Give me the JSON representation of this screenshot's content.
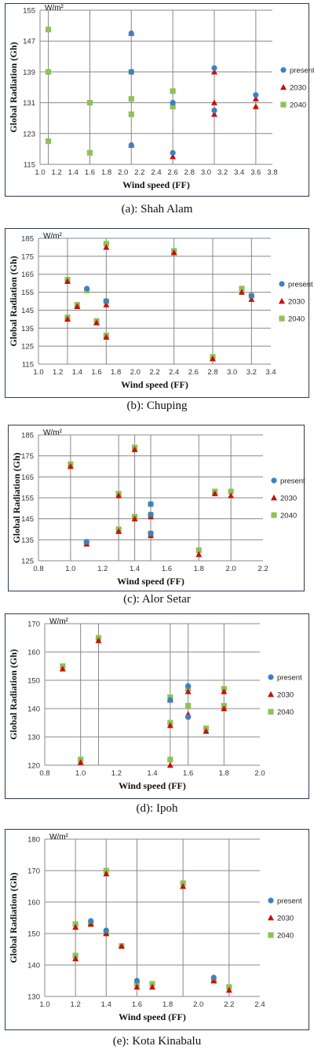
{
  "colors": {
    "present": "#3f7fc4",
    "2030": "#c8100b",
    "2040": "#8fc157"
  },
  "chart_data": [
    {
      "type": "scatter",
      "caption": "(a): Shah Alam",
      "unit": "W/m²",
      "xlabel": "Wind speed (FF)",
      "ylabel": "Global Radiation (Gh)",
      "xticks": [
        "1.0",
        "1.2",
        "1.4",
        "1.6",
        "1.8",
        "2.0",
        "2.2",
        "2.4",
        "2.6",
        "2.8",
        "3.0",
        "3.2",
        "3.4",
        "3.6",
        "3.8"
      ],
      "yticks": [
        "115",
        "123",
        "131",
        "139",
        "147",
        "155"
      ],
      "xlim": [
        1.0,
        3.8
      ],
      "ylim": [
        115,
        155
      ],
      "xgrid": [
        1.1,
        1.6,
        2.1,
        2.6,
        3.1,
        3.6
      ],
      "legend": [
        "present",
        "2030",
        "2040"
      ],
      "legend_position": "right",
      "series": [
        {
          "name": "present",
          "points": [
            [
              2.1,
              149
            ],
            [
              2.1,
              139
            ],
            [
              2.6,
              118
            ],
            [
              2.6,
              131
            ],
            [
              3.1,
              140
            ],
            [
              3.1,
              129
            ],
            [
              3.6,
              133
            ],
            [
              2.1,
              120
            ]
          ]
        },
        {
          "name": "2030",
          "points": [
            [
              2.1,
              149
            ],
            [
              2.1,
              120
            ],
            [
              2.6,
              117
            ],
            [
              3.1,
              131
            ],
            [
              3.1,
              128
            ],
            [
              3.1,
              139
            ],
            [
              3.6,
              130
            ],
            [
              3.6,
              132
            ]
          ]
        },
        {
          "name": "2040",
          "points": [
            [
              1.1,
              150
            ],
            [
              1.1,
              139
            ],
            [
              1.1,
              121
            ],
            [
              1.6,
              131
            ],
            [
              1.6,
              118
            ],
            [
              2.1,
              139
            ],
            [
              2.1,
              132
            ],
            [
              2.1,
              128
            ],
            [
              2.6,
              134
            ],
            [
              2.6,
              130
            ]
          ]
        }
      ]
    },
    {
      "type": "scatter",
      "caption": "(b): Chuping",
      "unit": "W/m²",
      "xlabel": "Wind speed (FF)",
      "ylabel": "Global Radiation (Gh)",
      "xticks": [
        "1.0",
        "1.2",
        "1.4",
        "1.6",
        "1.8",
        "2.0",
        "2.2",
        "2.4",
        "2.6",
        "2.8",
        "3.0",
        "3.2",
        "3.4"
      ],
      "yticks": [
        "115",
        "125",
        "135",
        "145",
        "155",
        "165",
        "175",
        "185"
      ],
      "xlim": [
        1.0,
        3.4
      ],
      "ylim": [
        115,
        185
      ],
      "xgrid": [
        1.3,
        1.7,
        2.4,
        2.8,
        3.2
      ],
      "legend": [
        "present",
        "2030",
        "2040"
      ],
      "legend_position": "right",
      "series": [
        {
          "name": "present",
          "points": [
            [
              1.5,
              157
            ],
            [
              1.7,
              150
            ],
            [
              3.2,
              153
            ]
          ]
        },
        {
          "name": "2030",
          "points": [
            [
              1.3,
              161
            ],
            [
              1.3,
              140
            ],
            [
              1.4,
              147
            ],
            [
              1.6,
              138
            ],
            [
              1.7,
              180
            ],
            [
              1.7,
              148
            ],
            [
              1.7,
              130
            ],
            [
              2.4,
              177
            ],
            [
              2.8,
              118
            ],
            [
              3.1,
              155
            ],
            [
              3.2,
              151
            ]
          ]
        },
        {
          "name": "2040",
          "points": [
            [
              1.3,
              162
            ],
            [
              1.3,
              141
            ],
            [
              1.4,
              148
            ],
            [
              1.5,
              156
            ],
            [
              1.6,
              139
            ],
            [
              1.7,
              182
            ],
            [
              1.7,
              150
            ],
            [
              1.7,
              131
            ],
            [
              2.4,
              178
            ],
            [
              2.8,
              119
            ],
            [
              3.1,
              157
            ],
            [
              3.2,
              153
            ]
          ]
        }
      ]
    },
    {
      "type": "scatter",
      "caption": "(c): Alor Setar",
      "unit": "W/m²",
      "xlabel": "Wind speed (FF)",
      "ylabel": "Global Radiation (Gh)",
      "xticks": [
        "0.8",
        "1.0",
        "1.2",
        "1.4",
        "1.6",
        "1.8",
        "2.0",
        "2.2"
      ],
      "yticks": [
        "125",
        "135",
        "145",
        "155",
        "165",
        "175",
        "185"
      ],
      "xlim": [
        0.8,
        2.2
      ],
      "ylim": [
        125,
        185
      ],
      "xgrid": [
        1.0,
        1.3,
        1.4,
        1.5,
        1.8,
        2.0
      ],
      "legend": [
        "present",
        "2030",
        "2040"
      ],
      "legend_position": "right",
      "series": [
        {
          "name": "present",
          "points": [
            [
              1.1,
              134
            ],
            [
              1.5,
              152
            ],
            [
              1.5,
              147
            ],
            [
              1.5,
              138
            ]
          ]
        },
        {
          "name": "2030",
          "points": [
            [
              1.0,
              170
            ],
            [
              1.1,
              133
            ],
            [
              1.3,
              156
            ],
            [
              1.3,
              139
            ],
            [
              1.4,
              178
            ],
            [
              1.4,
              145
            ],
            [
              1.5,
              146
            ],
            [
              1.5,
              137
            ],
            [
              1.8,
              128
            ],
            [
              1.9,
              157
            ],
            [
              2.0,
              156
            ]
          ]
        },
        {
          "name": "2040",
          "points": [
            [
              1.0,
              171
            ],
            [
              1.1,
              134
            ],
            [
              1.3,
              157
            ],
            [
              1.3,
              140
            ],
            [
              1.4,
              179
            ],
            [
              1.4,
              146
            ],
            [
              1.5,
              152
            ],
            [
              1.5,
              147
            ],
            [
              1.5,
              138
            ],
            [
              1.8,
              130
            ],
            [
              1.9,
              158
            ],
            [
              2.0,
              158
            ]
          ]
        }
      ]
    },
    {
      "type": "scatter",
      "caption": "(d): Ipoh",
      "unit": "W/m²",
      "xlabel": "Wind speed (FF)",
      "ylabel": "Global Radiation (Gh)",
      "xticks": [
        "0.8",
        "1.0",
        "1.2",
        "1.4",
        "1.6",
        "1.8",
        "2.0"
      ],
      "yticks": [
        "120",
        "130",
        "140",
        "150",
        "160",
        "170"
      ],
      "xlim": [
        0.8,
        2.0
      ],
      "ylim": [
        120,
        170
      ],
      "xgrid": [
        1.0,
        1.1,
        1.5,
        1.6,
        1.8
      ],
      "legend": [
        "present",
        "2030",
        "2040"
      ],
      "legend_position": "right",
      "series": [
        {
          "name": "present",
          "points": [
            [
              1.6,
              148
            ],
            [
              1.6,
              137
            ],
            [
              1.5,
              143
            ]
          ]
        },
        {
          "name": "2030",
          "points": [
            [
              0.9,
              154
            ],
            [
              1.0,
              121
            ],
            [
              1.1,
              164
            ],
            [
              1.5,
              143
            ],
            [
              1.5,
              134
            ],
            [
              1.5,
              120
            ],
            [
              1.6,
              146
            ],
            [
              1.6,
              138
            ],
            [
              1.7,
              132
            ],
            [
              1.8,
              146
            ],
            [
              1.8,
              140
            ]
          ]
        },
        {
          "name": "2040",
          "points": [
            [
              0.9,
              155
            ],
            [
              1.0,
              122
            ],
            [
              1.1,
              165
            ],
            [
              1.5,
              144
            ],
            [
              1.5,
              135
            ],
            [
              1.5,
              122
            ],
            [
              1.6,
              147
            ],
            [
              1.6,
              141
            ],
            [
              1.7,
              133
            ],
            [
              1.8,
              147
            ],
            [
              1.8,
              141
            ]
          ]
        }
      ]
    },
    {
      "type": "scatter",
      "caption": "(e): Kota Kinabalu",
      "unit": "W/m²",
      "xlabel": "Wind speed (FF)",
      "ylabel": "Global Radiation (Gh)",
      "xticks": [
        "1.0",
        "1.2",
        "1.4",
        "1.6",
        "1.8",
        "2.0",
        "2.2",
        "2.4"
      ],
      "yticks": [
        "130",
        "140",
        "150",
        "160",
        "170",
        "180"
      ],
      "xlim": [
        1.0,
        2.4
      ],
      "ylim": [
        130,
        180
      ],
      "xgrid": [
        1.2,
        1.4,
        1.6,
        1.9,
        2.2
      ],
      "legend": [
        "present",
        "2030",
        "2040"
      ],
      "legend_position": "right",
      "series": [
        {
          "name": "present",
          "points": [
            [
              1.3,
              154
            ],
            [
              1.4,
              151
            ],
            [
              1.6,
              135
            ],
            [
              2.1,
              136
            ]
          ]
        },
        {
          "name": "2030",
          "points": [
            [
              1.2,
              152
            ],
            [
              1.2,
              142
            ],
            [
              1.3,
              153
            ],
            [
              1.4,
              169
            ],
            [
              1.4,
              150
            ],
            [
              1.5,
              146
            ],
            [
              1.6,
              133
            ],
            [
              1.7,
              133
            ],
            [
              1.9,
              165
            ],
            [
              2.1,
              135
            ],
            [
              2.2,
              132
            ]
          ]
        },
        {
          "name": "2040",
          "points": [
            [
              1.2,
              153
            ],
            [
              1.2,
              143
            ],
            [
              1.3,
              153
            ],
            [
              1.4,
              170
            ],
            [
              1.4,
              150
            ],
            [
              1.5,
              146
            ],
            [
              1.6,
              134
            ],
            [
              1.7,
              134
            ],
            [
              1.9,
              166
            ],
            [
              2.1,
              135
            ],
            [
              2.2,
              133
            ]
          ]
        }
      ]
    }
  ]
}
